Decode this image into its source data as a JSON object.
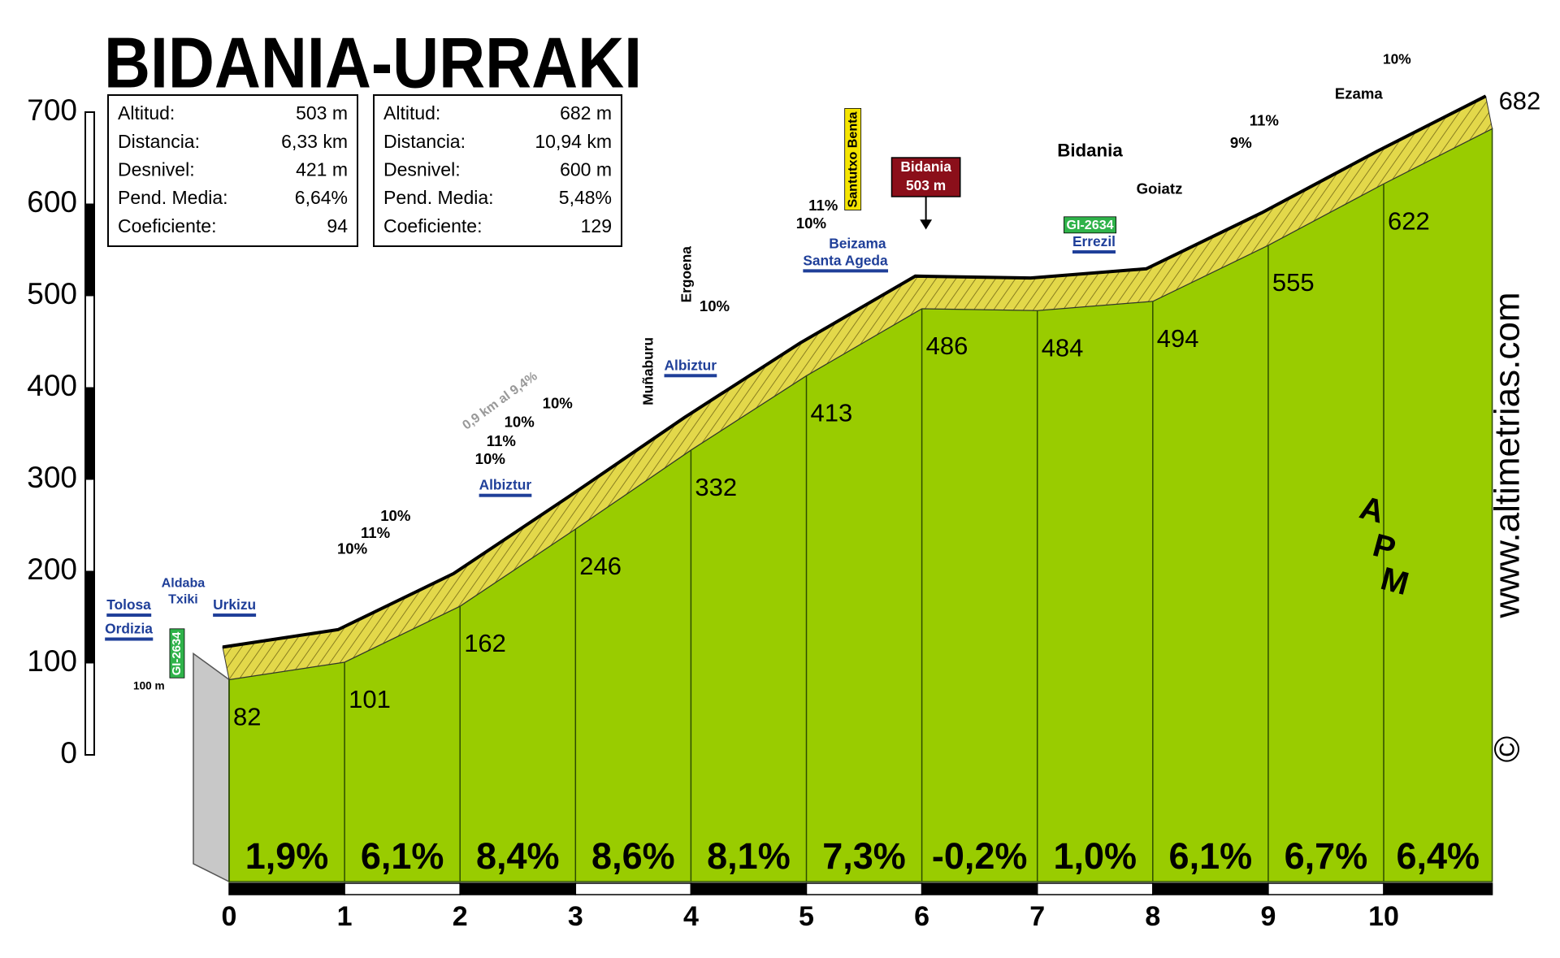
{
  "info_boxes": [
    {
      "rows": [
        [
          "Altitud:",
          "503 m"
        ],
        [
          "Distancia:",
          "6,33 km"
        ],
        [
          "Desnivel:",
          "421 m"
        ],
        [
          "Pend. Media:",
          "6,64%"
        ],
        [
          "Coeficiente:",
          "94"
        ]
      ]
    },
    {
      "rows": [
        [
          "Altitud:",
          "682 m"
        ],
        [
          "Distancia:",
          "10,94 km"
        ],
        [
          "Desnivel:",
          "600 m"
        ],
        [
          "Pend. Media:",
          "5,48%"
        ],
        [
          "Coeficiente:",
          "129"
        ]
      ]
    }
  ],
  "chart_data": {
    "type": "area",
    "title": "BIDANIA-URRAKI",
    "x": [
      0,
      1,
      2,
      3,
      4,
      5,
      6,
      7,
      8,
      9,
      10,
      10.94
    ],
    "values": [
      82,
      101,
      162,
      246,
      332,
      413,
      486,
      484,
      494,
      555,
      622,
      682
    ],
    "color": "#99cc00",
    "xlim": [
      0,
      10.94
    ],
    "xticks": [
      0,
      1,
      2,
      3,
      4,
      5,
      6,
      7,
      8,
      9,
      10
    ],
    "ylim": [
      0,
      700
    ],
    "yticks": [
      0,
      100,
      200,
      300,
      400,
      500,
      600,
      700
    ],
    "segment_gradients": {
      "values": [
        1.9,
        6.1,
        8.4,
        8.6,
        8.1,
        7.3,
        -0.2,
        1.0,
        6.1,
        6.7,
        6.4
      ],
      "value_labels": [
        "1,9%",
        "6,1%",
        "8,4%",
        "8,6%",
        "8,1%",
        "7,3%",
        "-0,2%",
        "1,0%",
        "6,1%",
        "6,7%",
        "6,4%"
      ]
    },
    "annotations": [
      "Tolosa",
      "Ordizia",
      "Aldaba",
      "Txiki",
      "Urkizu",
      "GI-2634",
      "100 m",
      "10%",
      "11%",
      "10%",
      "0,9 km al 9,4%",
      "10%",
      "11%",
      "10%",
      "10%",
      "Albiztur",
      "Muñaburu",
      "Ergoena",
      "10%",
      "Albiztur",
      "11%",
      "10%",
      "Beizama",
      "Santa Ageda",
      "Santutxo Benta",
      "Bidania",
      "503 m",
      "Bidania",
      "GI-2634",
      "Errezil",
      "Goiatz",
      "9%",
      "11%",
      "Ezama",
      "10%"
    ]
  },
  "watermark": "www.altimetrias.com",
  "copyright": "©",
  "logo_letters": [
    "A",
    "P",
    "M"
  ]
}
